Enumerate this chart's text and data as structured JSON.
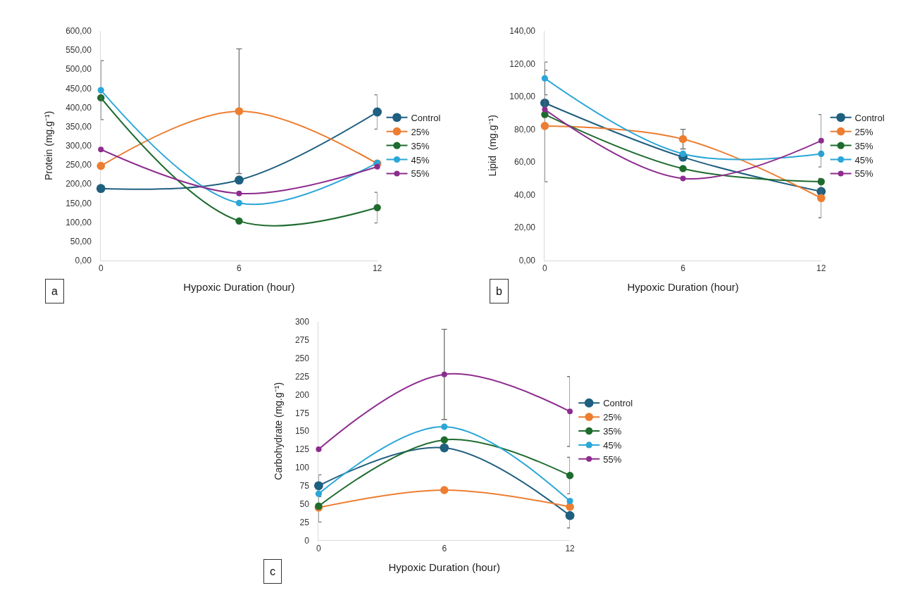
{
  "chart_data": [
    {
      "type": "line",
      "xlabel": "Hypoxic Duration (hour)",
      "ylabel": "Protein (mg.g⁻¹)",
      "x": [
        0,
        6,
        12
      ],
      "xlim": [
        0,
        12
      ],
      "xticks": [
        0,
        6,
        12
      ],
      "ylim": [
        0,
        600
      ],
      "yticks": [
        {
          "value": 0,
          "label": "0,00"
        },
        {
          "value": 50,
          "label": "50,00"
        },
        {
          "value": 100,
          "label": "100,00"
        },
        {
          "value": 150,
          "label": "150,00"
        },
        {
          "value": 200,
          "label": "200,00"
        },
        {
          "value": 250,
          "label": "250,00"
        },
        {
          "value": 300,
          "label": "300,00"
        },
        {
          "value": 350,
          "label": "350,00"
        },
        {
          "value": 400,
          "label": "400,00"
        },
        {
          "value": 450,
          "label": "450,00"
        },
        {
          "value": 500,
          "label": "500,00"
        },
        {
          "value": 550,
          "label": "550,00"
        },
        {
          "value": 600,
          "label": "600,00"
        }
      ],
      "annotations": [
        "a"
      ],
      "legend": "right",
      "marker": "circle",
      "line_style": "solid",
      "series": [
        {
          "name": "Control",
          "color": "#1f5f7f",
          "values": [
            188,
            210,
            388
          ],
          "errors": [
            null,
            null,
            45
          ]
        },
        {
          "name": "25%",
          "color": "#ed7d31",
          "values": [
            247,
            390,
            253
          ],
          "errors": [
            null,
            163,
            null
          ]
        },
        {
          "name": "35%",
          "color": "#1e6b2e",
          "values": [
            425,
            103,
            138
          ],
          "errors": [
            null,
            null,
            40
          ]
        },
        {
          "name": "45%",
          "color": "#2aa6d8",
          "values": [
            445,
            150,
            255
          ],
          "errors": [
            77,
            null,
            null
          ]
        },
        {
          "name": "55%",
          "color": "#8e2c8e",
          "values": [
            290,
            175,
            245
          ]
        }
      ]
    },
    {
      "type": "line",
      "xlabel": "Hypoxic Duration (hour)",
      "ylabel": "Lipid  (mg.g⁻¹)",
      "x": [
        0,
        6,
        12
      ],
      "xlim": [
        0,
        12
      ],
      "xticks": [
        0,
        6,
        12
      ],
      "ylim": [
        0,
        140
      ],
      "yticks": [
        {
          "value": 0,
          "label": "0,00"
        },
        {
          "value": 20,
          "label": "20,00"
        },
        {
          "value": 40,
          "label": "40,00"
        },
        {
          "value": 60,
          "label": "60,00"
        },
        {
          "value": 80,
          "label": "80,00"
        },
        {
          "value": 100,
          "label": "100,00"
        },
        {
          "value": 120,
          "label": "120,00"
        },
        {
          "value": 140,
          "label": "140,00"
        }
      ],
      "annotations": [
        "b"
      ],
      "legend": "right",
      "marker": "circle",
      "line_style": "solid",
      "series": [
        {
          "name": "Control",
          "color": "#1f5f7f",
          "values": [
            96,
            63,
            42
          ]
        },
        {
          "name": "25%",
          "color": "#ed7d31",
          "values": [
            82,
            74,
            38
          ],
          "errors": [
            34,
            6,
            12
          ]
        },
        {
          "name": "35%",
          "color": "#1e6b2e",
          "values": [
            89,
            56,
            48
          ]
        },
        {
          "name": "45%",
          "color": "#2aa6d8",
          "values": [
            111,
            65,
            65
          ],
          "errors": [
            10,
            null,
            null
          ]
        },
        {
          "name": "55%",
          "color": "#8e2c8e",
          "values": [
            92,
            50,
            73
          ],
          "errors": [
            null,
            null,
            16
          ]
        }
      ]
    },
    {
      "type": "line",
      "xlabel": "Hypoxic Duration (hour)",
      "ylabel": "Carbohydrate (mg.g⁻¹)",
      "x": [
        0,
        6,
        12
      ],
      "xlim": [
        0,
        12
      ],
      "xticks": [
        0,
        6,
        12
      ],
      "ylim": [
        0,
        300
      ],
      "yticks": [
        0,
        25,
        50,
        75,
        100,
        125,
        150,
        175,
        200,
        225,
        250,
        275,
        300
      ],
      "annotations": [
        "c"
      ],
      "legend": "right",
      "marker": "circle",
      "line_style": "solid",
      "series": [
        {
          "name": "Control",
          "color": "#1f5f7f",
          "values": [
            75,
            127,
            34
          ],
          "errors": [
            15,
            null,
            17
          ]
        },
        {
          "name": "25%",
          "color": "#ed7d31",
          "values": [
            45,
            69,
            46
          ],
          "errors": [
            20,
            null,
            null
          ]
        },
        {
          "name": "35%",
          "color": "#1e6b2e",
          "values": [
            47,
            138,
            89
          ],
          "errors": [
            null,
            null,
            25
          ]
        },
        {
          "name": "45%",
          "color": "#2aa6d8",
          "values": [
            64,
            156,
            54
          ]
        },
        {
          "name": "55%",
          "color": "#8e2c8e",
          "values": [
            125,
            228,
            177
          ],
          "errors": [
            null,
            62,
            48
          ]
        }
      ]
    }
  ]
}
